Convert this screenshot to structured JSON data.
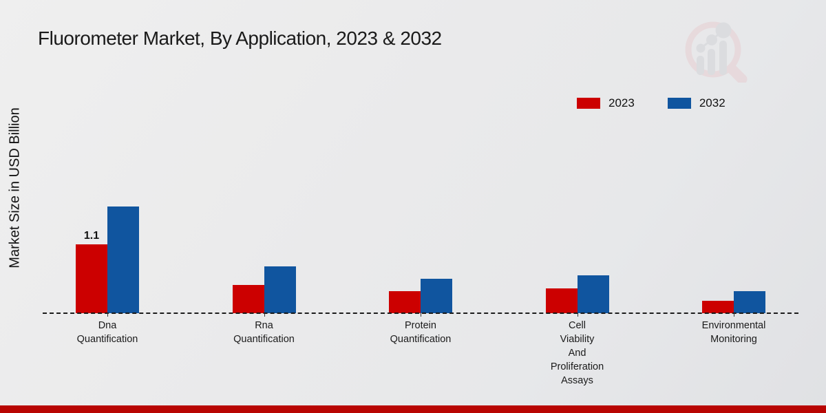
{
  "title": "Fluorometer Market, By Application, 2023 & 2032",
  "y_axis_label": "Market Size in USD Billion",
  "legend": {
    "items": [
      {
        "label": "2023",
        "color": "#cc0000"
      },
      {
        "label": "2032",
        "color": "#10559f"
      }
    ]
  },
  "chart_data": {
    "type": "bar",
    "title": "Fluorometer Market, By Application, 2023 & 2032",
    "ylabel": "Market Size in USD Billion",
    "xlabel": "",
    "categories": [
      "Dna\nQuantification",
      "Rna\nQuantification",
      "Protein\nQuantification",
      "Cell\nViability\nAnd\nProliferation\nAssays",
      "Environmental\nMonitoring"
    ],
    "series": [
      {
        "name": "2023",
        "color": "#cc0000",
        "values": [
          1.1,
          0.45,
          0.35,
          0.4,
          0.2
        ]
      },
      {
        "name": "2032",
        "color": "#10559f",
        "values": [
          1.7,
          0.75,
          0.55,
          0.6,
          0.35
        ]
      }
    ],
    "annotations": [
      {
        "series_index": 0,
        "category_index": 0,
        "text": "1.1"
      }
    ],
    "ylim": [
      0,
      2.2
    ],
    "grid": false,
    "baseline_style": "dashed",
    "legend_position": "top-right"
  },
  "footer": {
    "bar_color": "#b80502"
  },
  "watermark": {
    "name": "magnifier-bar-chart-logo",
    "ring_color": "#e7ced2",
    "glyph_color": "#d2d3d7"
  }
}
